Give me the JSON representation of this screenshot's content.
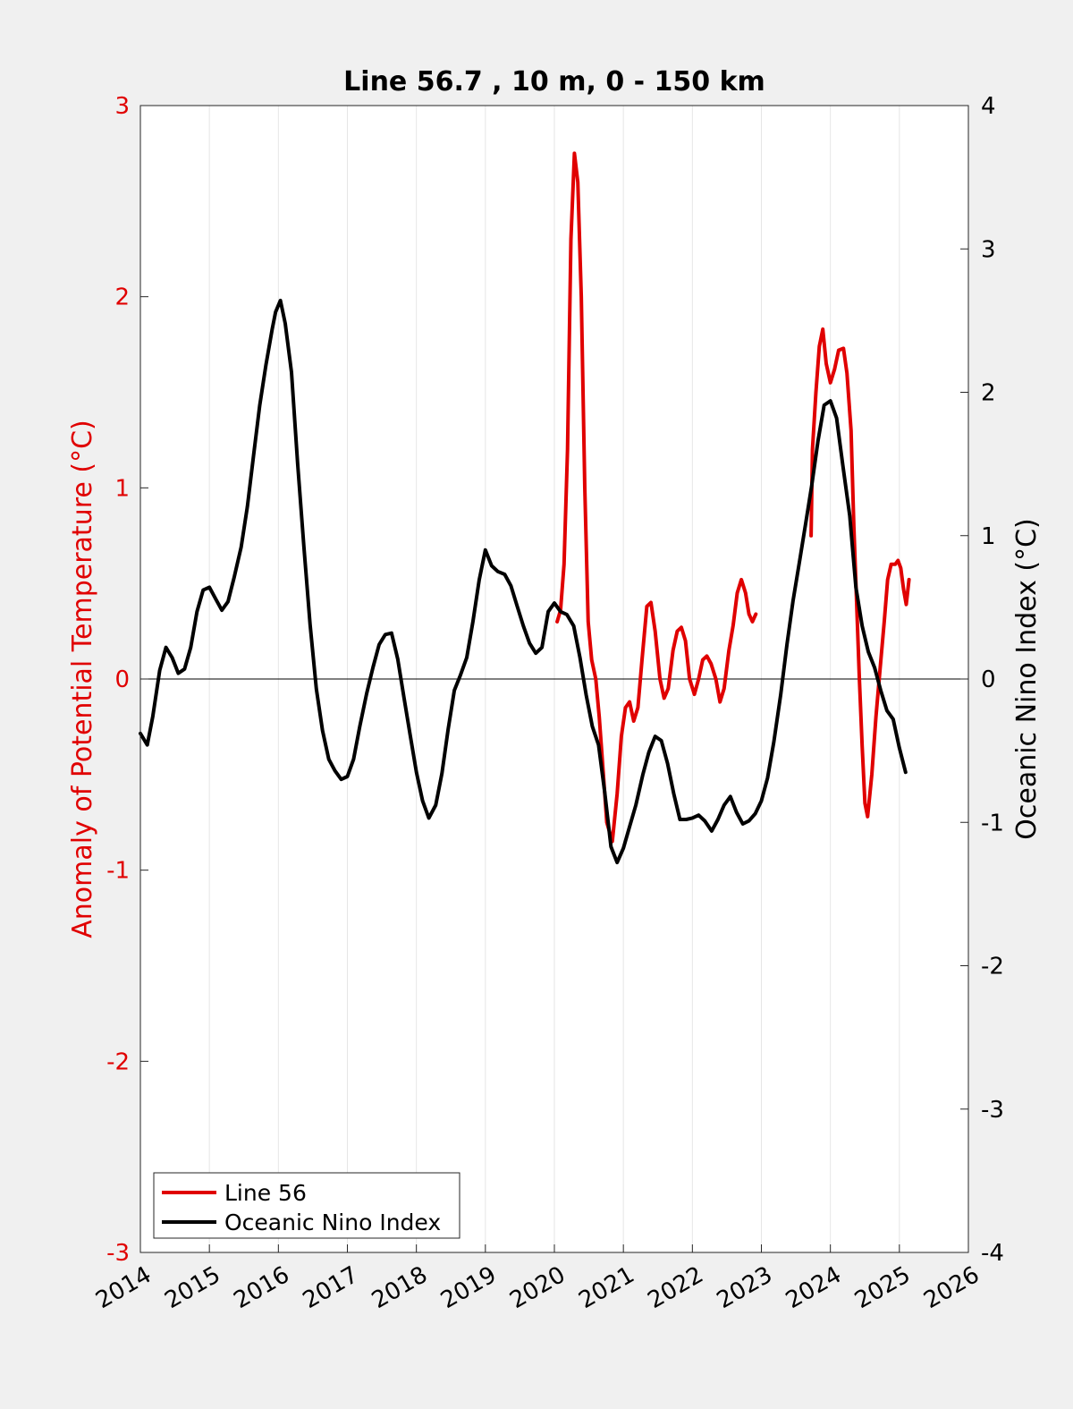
{
  "chart_data": {
    "type": "line",
    "title": "Line 56.7 , 10 m, 0 - 150 km",
    "xlabel": "",
    "ylabel_left": "Anomaly of Potential Temperature (°C)",
    "ylabel_right": "Oceanic Nino Index (°C)",
    "xlim": [
      2014,
      2026
    ],
    "ylim_left": [
      -3,
      3
    ],
    "ylim_right": [
      -4,
      4
    ],
    "xticks": [
      "2014",
      "2015",
      "2016",
      "2017",
      "2018",
      "2019",
      "2020",
      "2021",
      "2022",
      "2023",
      "2024",
      "2025",
      "2026"
    ],
    "yticks_left": [
      "3",
      "2",
      "1",
      "0",
      "-1",
      "-2",
      "-3"
    ],
    "yticks_right": [
      "4",
      "3",
      "2",
      "1",
      "0",
      "-1",
      "-2",
      "-3",
      "-4"
    ],
    "grid": "vertical",
    "legend_position": "bottom-left",
    "colors": {
      "left_axis": "#e00000",
      "line56": "#e00000",
      "oni": "#000000"
    },
    "series": [
      {
        "name": "Line 56",
        "axis": "left",
        "segments": [
          [
            [
              2020.04,
              0.3
            ],
            [
              2020.09,
              0.36
            ],
            [
              2020.14,
              0.6
            ],
            [
              2020.19,
              1.2
            ],
            [
              2020.24,
              2.3
            ],
            [
              2020.29,
              2.75
            ],
            [
              2020.34,
              2.6
            ],
            [
              2020.39,
              2.0
            ],
            [
              2020.44,
              1.0
            ],
            [
              2020.49,
              0.3
            ],
            [
              2020.54,
              0.1
            ],
            [
              2020.6,
              0.0
            ],
            [
              2020.65,
              -0.2
            ],
            [
              2020.71,
              -0.5
            ],
            [
              2020.76,
              -0.75
            ],
            [
              2020.84,
              -0.85
            ],
            [
              2020.91,
              -0.6
            ],
            [
              2020.97,
              -0.3
            ],
            [
              2021.03,
              -0.15
            ],
            [
              2021.09,
              -0.12
            ],
            [
              2021.15,
              -0.22
            ],
            [
              2021.21,
              -0.15
            ],
            [
              2021.27,
              0.1
            ],
            [
              2021.34,
              0.38
            ],
            [
              2021.4,
              0.4
            ],
            [
              2021.46,
              0.25
            ],
            [
              2021.53,
              0.0
            ],
            [
              2021.59,
              -0.1
            ],
            [
              2021.65,
              -0.05
            ],
            [
              2021.72,
              0.15
            ],
            [
              2021.78,
              0.25
            ],
            [
              2021.84,
              0.27
            ],
            [
              2021.9,
              0.2
            ],
            [
              2021.96,
              0.0
            ],
            [
              2022.03,
              -0.08
            ],
            [
              2022.09,
              0.0
            ],
            [
              2022.15,
              0.1
            ],
            [
              2022.21,
              0.12
            ],
            [
              2022.27,
              0.08
            ],
            [
              2022.34,
              0.0
            ],
            [
              2022.4,
              -0.12
            ],
            [
              2022.46,
              -0.05
            ],
            [
              2022.53,
              0.15
            ],
            [
              2022.59,
              0.28
            ],
            [
              2022.65,
              0.45
            ],
            [
              2022.71,
              0.52
            ],
            [
              2022.77,
              0.45
            ],
            [
              2022.82,
              0.34
            ],
            [
              2022.87,
              0.3
            ],
            [
              2022.92,
              0.34
            ]
          ],
          [
            [
              2023.72,
              0.75
            ],
            [
              2023.74,
              1.2
            ],
            [
              2023.79,
              1.5
            ],
            [
              2023.84,
              1.74
            ],
            [
              2023.89,
              1.83
            ],
            [
              2023.94,
              1.65
            ],
            [
              2024.0,
              1.55
            ],
            [
              2024.06,
              1.62
            ],
            [
              2024.12,
              1.72
            ],
            [
              2024.19,
              1.73
            ],
            [
              2024.24,
              1.6
            ],
            [
              2024.3,
              1.3
            ],
            [
              2024.34,
              0.8
            ],
            [
              2024.38,
              0.4
            ],
            [
              2024.42,
              0.0
            ],
            [
              2024.46,
              -0.35
            ],
            [
              2024.5,
              -0.65
            ],
            [
              2024.54,
              -0.72
            ],
            [
              2024.6,
              -0.5
            ],
            [
              2024.66,
              -0.2
            ],
            [
              2024.72,
              0.05
            ],
            [
              2024.78,
              0.3
            ],
            [
              2024.83,
              0.52
            ],
            [
              2024.88,
              0.6
            ],
            [
              2024.94,
              0.6
            ],
            [
              2024.98,
              0.62
            ],
            [
              2025.02,
              0.58
            ],
            [
              2025.06,
              0.47
            ],
            [
              2025.1,
              0.39
            ],
            [
              2025.14,
              0.52
            ]
          ]
        ]
      },
      {
        "name": "Oceanic Nino Index",
        "axis": "right",
        "segments": [
          [
            [
              2014.0,
              -0.38
            ],
            [
              2014.1,
              -0.46
            ],
            [
              2014.18,
              -0.26
            ],
            [
              2014.28,
              0.06
            ],
            [
              2014.37,
              0.22
            ],
            [
              2014.46,
              0.15
            ],
            [
              2014.55,
              0.04
            ],
            [
              2014.64,
              0.07
            ],
            [
              2014.73,
              0.22
            ],
            [
              2014.82,
              0.47
            ],
            [
              2014.91,
              0.62
            ],
            [
              2015.0,
              0.64
            ],
            [
              2015.09,
              0.56
            ],
            [
              2015.18,
              0.48
            ],
            [
              2015.27,
              0.54
            ],
            [
              2015.36,
              0.71
            ],
            [
              2015.46,
              0.92
            ],
            [
              2015.55,
              1.2
            ],
            [
              2015.64,
              1.56
            ],
            [
              2015.73,
              1.91
            ],
            [
              2015.82,
              2.19
            ],
            [
              2015.91,
              2.44
            ],
            [
              2015.96,
              2.56
            ],
            [
              2016.03,
              2.64
            ],
            [
              2016.1,
              2.48
            ],
            [
              2016.19,
              2.14
            ],
            [
              2016.28,
              1.5
            ],
            [
              2016.37,
              0.92
            ],
            [
              2016.46,
              0.38
            ],
            [
              2016.55,
              -0.07
            ],
            [
              2016.64,
              -0.36
            ],
            [
              2016.73,
              -0.56
            ],
            [
              2016.82,
              -0.64
            ],
            [
              2016.91,
              -0.7
            ],
            [
              2017.0,
              -0.68
            ],
            [
              2017.09,
              -0.56
            ],
            [
              2017.18,
              -0.33
            ],
            [
              2017.28,
              -0.1
            ],
            [
              2017.37,
              0.08
            ],
            [
              2017.46,
              0.24
            ],
            [
              2017.55,
              0.31
            ],
            [
              2017.64,
              0.32
            ],
            [
              2017.73,
              0.14
            ],
            [
              2017.82,
              -0.13
            ],
            [
              2017.91,
              -0.39
            ],
            [
              2018.0,
              -0.65
            ],
            [
              2018.09,
              -0.85
            ],
            [
              2018.18,
              -0.97
            ],
            [
              2018.28,
              -0.88
            ],
            [
              2018.37,
              -0.66
            ],
            [
              2018.46,
              -0.35
            ],
            [
              2018.55,
              -0.08
            ],
            [
              2018.64,
              0.03
            ],
            [
              2018.73,
              0.15
            ],
            [
              2018.82,
              0.4
            ],
            [
              2018.91,
              0.69
            ],
            [
              2019.0,
              0.9
            ],
            [
              2019.09,
              0.79
            ],
            [
              2019.18,
              0.75
            ],
            [
              2019.28,
              0.73
            ],
            [
              2019.37,
              0.65
            ],
            [
              2019.46,
              0.51
            ],
            [
              2019.55,
              0.37
            ],
            [
              2019.64,
              0.25
            ],
            [
              2019.73,
              0.18
            ],
            [
              2019.82,
              0.22
            ],
            [
              2019.91,
              0.47
            ],
            [
              2020.0,
              0.53
            ],
            [
              2020.09,
              0.47
            ],
            [
              2020.18,
              0.45
            ],
            [
              2020.28,
              0.37
            ],
            [
              2020.37,
              0.15
            ],
            [
              2020.46,
              -0.11
            ],
            [
              2020.55,
              -0.33
            ],
            [
              2020.64,
              -0.46
            ],
            [
              2020.73,
              -0.79
            ],
            [
              2020.82,
              -1.17
            ],
            [
              2020.91,
              -1.28
            ],
            [
              2021.0,
              -1.18
            ],
            [
              2021.09,
              -1.03
            ],
            [
              2021.18,
              -0.88
            ],
            [
              2021.28,
              -0.67
            ],
            [
              2021.37,
              -0.51
            ],
            [
              2021.46,
              -0.4
            ],
            [
              2021.55,
              -0.43
            ],
            [
              2021.64,
              -0.59
            ],
            [
              2021.73,
              -0.8
            ],
            [
              2021.82,
              -0.98
            ],
            [
              2021.91,
              -0.98
            ],
            [
              2022.0,
              -0.97
            ],
            [
              2022.09,
              -0.95
            ],
            [
              2022.18,
              -0.99
            ],
            [
              2022.28,
              -1.06
            ],
            [
              2022.37,
              -0.98
            ],
            [
              2022.46,
              -0.88
            ],
            [
              2022.55,
              -0.82
            ],
            [
              2022.64,
              -0.93
            ],
            [
              2022.73,
              -1.01
            ],
            [
              2022.82,
              -0.99
            ],
            [
              2022.91,
              -0.94
            ],
            [
              2023.0,
              -0.85
            ],
            [
              2023.09,
              -0.69
            ],
            [
              2023.18,
              -0.44
            ],
            [
              2023.28,
              -0.11
            ],
            [
              2023.37,
              0.24
            ],
            [
              2023.46,
              0.55
            ],
            [
              2023.55,
              0.81
            ],
            [
              2023.64,
              1.08
            ],
            [
              2023.73,
              1.35
            ],
            [
              2023.82,
              1.66
            ],
            [
              2023.91,
              1.91
            ],
            [
              2024.0,
              1.94
            ],
            [
              2024.09,
              1.82
            ],
            [
              2024.18,
              1.49
            ],
            [
              2024.28,
              1.14
            ],
            [
              2024.37,
              0.64
            ],
            [
              2024.46,
              0.37
            ],
            [
              2024.55,
              0.19
            ],
            [
              2024.64,
              0.08
            ],
            [
              2024.73,
              -0.08
            ],
            [
              2024.82,
              -0.22
            ],
            [
              2024.91,
              -0.28
            ],
            [
              2025.0,
              -0.48
            ],
            [
              2025.09,
              -0.65
            ]
          ]
        ]
      }
    ]
  }
}
